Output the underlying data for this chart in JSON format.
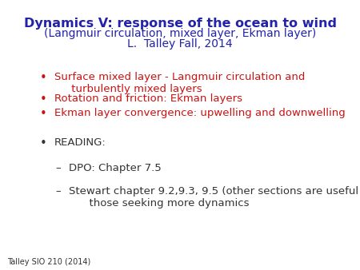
{
  "title_line1": "Dynamics V: response of the ocean to wind",
  "title_line2": "(Langmuir circulation, mixed layer, Ekman layer)",
  "title_line3": "L.  Talley Fall, 2014",
  "title_color": "#2222AA",
  "bullet_color": "#CC1111",
  "reading_color": "#333333",
  "footer_color": "#333333",
  "background_color": "#ffffff",
  "title1_fontsize": 11.5,
  "title2_fontsize": 10.0,
  "title3_fontsize": 10.0,
  "bullet_fontsize": 9.5,
  "reading_fontsize": 9.5,
  "footer_fontsize": 7.0,
  "bullet_items": [
    "Surface mixed layer - Langmuir circulation and\n     turbulently mixed layers",
    "Rotation and friction: Ekman layers",
    "Ekman layer convergence: upwelling and downwelling"
  ],
  "reading_label": "READING:",
  "reading_sub_items": [
    "DPO: Chapter 7.5",
    "Stewart chapter 9.2,9.3, 9.5 (other sections are useful for\n      those seeking more dynamics"
  ],
  "footer_text": "Talley SIO 210 (2014)"
}
